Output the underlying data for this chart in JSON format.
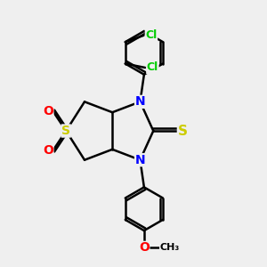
{
  "background_color": "#efefef",
  "atom_colors": {
    "N": "#0000ff",
    "S": "#cccc00",
    "O": "#ff0000",
    "Cl": "#00cc00",
    "C": "#000000"
  },
  "bond_color": "#000000",
  "bond_width": 1.8,
  "font_size_atom": 10,
  "figsize": [
    3.0,
    3.0
  ],
  "dpi": 100
}
